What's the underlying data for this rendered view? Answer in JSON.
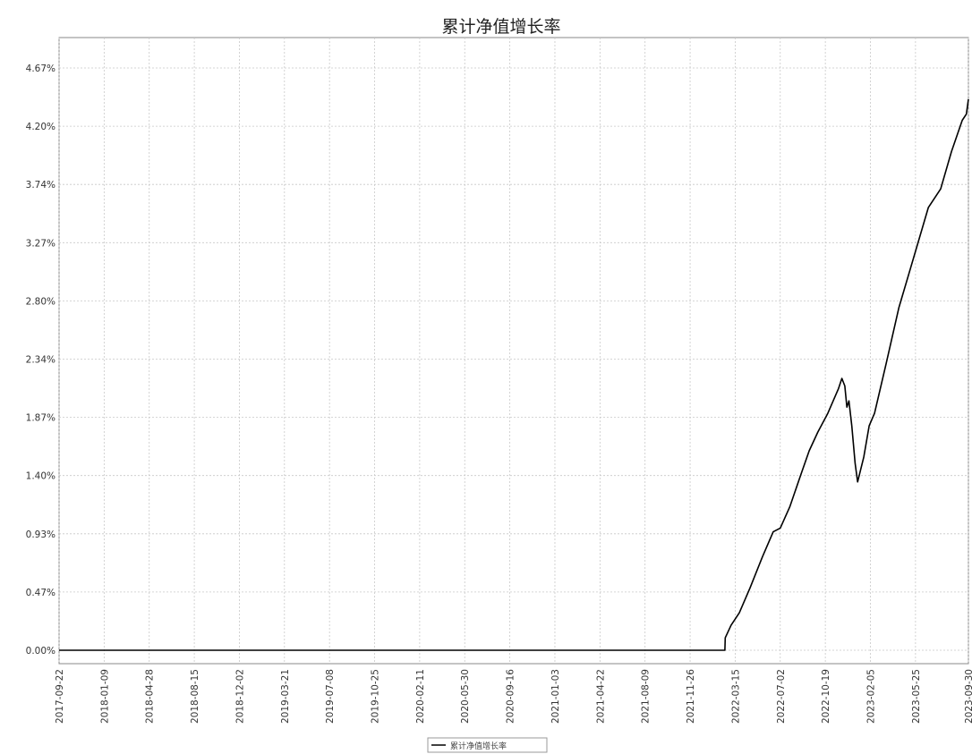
{
  "chart_data": {
    "type": "line",
    "title": "累计净值增长率",
    "xlabel": "",
    "ylabel": "",
    "x_ticks": [
      "2017-09-22",
      "2018-01-09",
      "2018-04-28",
      "2018-08-15",
      "2018-12-02",
      "2019-03-21",
      "2019-07-08",
      "2019-10-25",
      "2020-02-11",
      "2020-05-30",
      "2020-09-16",
      "2021-01-03",
      "2021-04-22",
      "2021-08-09",
      "2021-11-26",
      "2022-03-15",
      "2022-07-02",
      "2022-10-19",
      "2023-02-05",
      "2023-05-25",
      "2023-09-30"
    ],
    "y_ticks": [
      "0.00%",
      "0.47%",
      "0.93%",
      "1.40%",
      "1.87%",
      "2.34%",
      "2.80%",
      "3.27%",
      "3.74%",
      "4.20%",
      "4.67%"
    ],
    "ylim": [
      0,
      4.67
    ],
    "grid": true,
    "legend_position": "bottom-center",
    "series": [
      {
        "name": "累计净值增长率",
        "color": "#000000",
        "points": [
          [
            "2017-09-22",
            0.0
          ],
          [
            "2022-02-18",
            0.0
          ],
          [
            "2022-02-19",
            0.1
          ],
          [
            "2022-03-05",
            0.2
          ],
          [
            "2022-03-25",
            0.3
          ],
          [
            "2022-04-20",
            0.5
          ],
          [
            "2022-05-20",
            0.75
          ],
          [
            "2022-06-15",
            0.95
          ],
          [
            "2022-07-02",
            0.98
          ],
          [
            "2022-07-25",
            1.15
          ],
          [
            "2022-08-20",
            1.4
          ],
          [
            "2022-09-10",
            1.6
          ],
          [
            "2022-10-01",
            1.75
          ],
          [
            "2022-10-25",
            1.9
          ],
          [
            "2022-11-20",
            2.1
          ],
          [
            "2022-11-28",
            2.18
          ],
          [
            "2022-12-05",
            2.12
          ],
          [
            "2022-12-10",
            1.95
          ],
          [
            "2022-12-15",
            2.0
          ],
          [
            "2022-12-22",
            1.8
          ],
          [
            "2022-12-30",
            1.5
          ],
          [
            "2023-01-05",
            1.35
          ],
          [
            "2023-01-20",
            1.55
          ],
          [
            "2023-02-02",
            1.8
          ],
          [
            "2023-02-15",
            1.9
          ],
          [
            "2023-03-15",
            2.3
          ],
          [
            "2023-04-15",
            2.75
          ],
          [
            "2023-05-25",
            3.2
          ],
          [
            "2023-06-25",
            3.55
          ],
          [
            "2023-07-25",
            3.7
          ],
          [
            "2023-08-20",
            4.0
          ],
          [
            "2023-09-15",
            4.25
          ],
          [
            "2023-09-25",
            4.3
          ],
          [
            "2023-09-30",
            4.42
          ]
        ]
      }
    ]
  }
}
